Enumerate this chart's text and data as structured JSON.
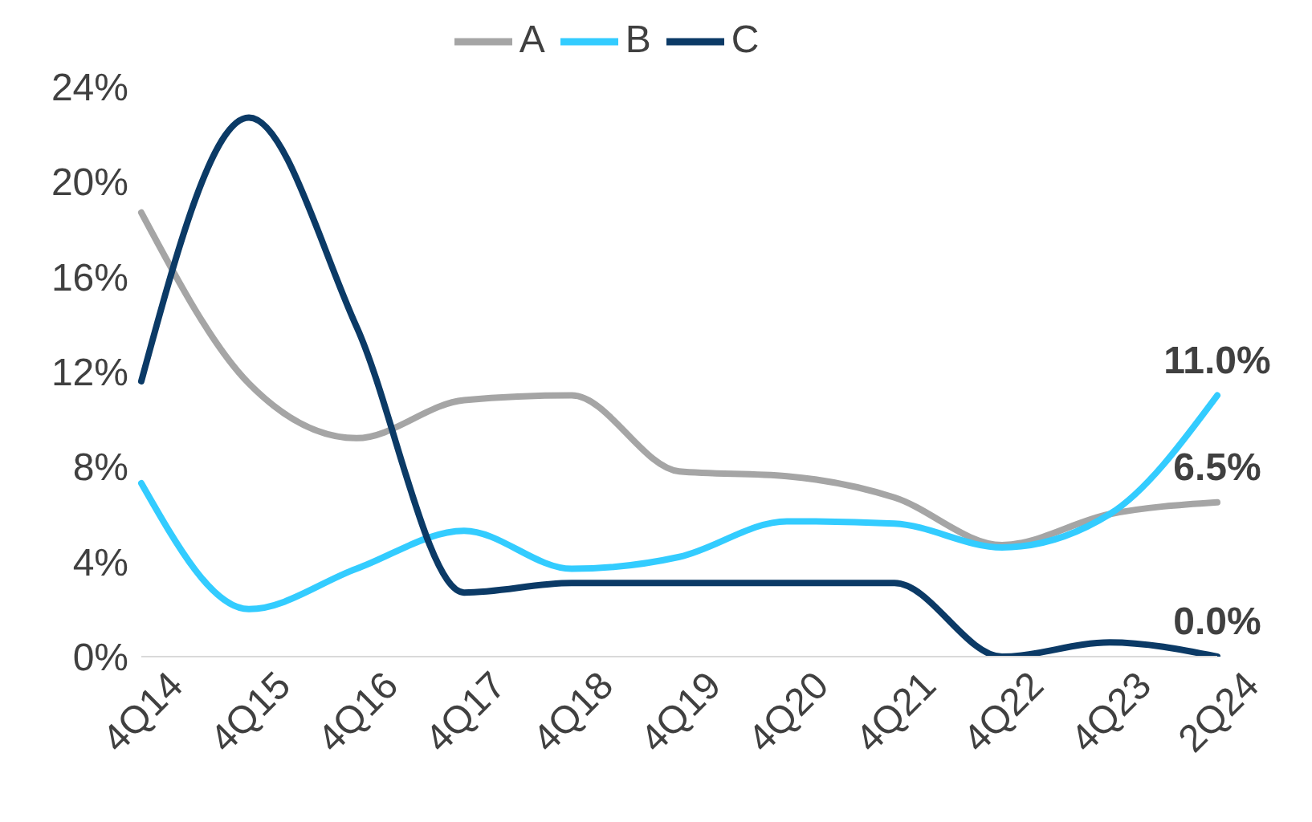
{
  "chart_data": {
    "type": "line",
    "categories": [
      "4Q14",
      "4Q15",
      "4Q16",
      "4Q17",
      "4Q18",
      "4Q19",
      "4Q20",
      "4Q21",
      "4Q22",
      "4Q23",
      "2Q24"
    ],
    "series": [
      {
        "name": "A",
        "color": "#a5a5a5",
        "values": [
          18.7,
          11.5,
          9.2,
          10.8,
          11.0,
          7.8,
          7.6,
          6.7,
          4.7,
          6.0,
          6.5
        ],
        "value_labels": [
          null,
          null,
          null,
          null,
          null,
          null,
          null,
          null,
          null,
          null,
          "6.5%"
        ]
      },
      {
        "name": "B",
        "color": "#33ccff",
        "values": [
          7.3,
          2.0,
          3.7,
          5.3,
          3.7,
          4.2,
          5.7,
          5.6,
          4.6,
          6.0,
          11.0
        ],
        "value_labels": [
          null,
          null,
          null,
          null,
          null,
          null,
          null,
          null,
          null,
          null,
          "11.0%"
        ]
      },
      {
        "name": "C",
        "color": "#0b3a66",
        "values": [
          11.6,
          22.7,
          13.9,
          2.7,
          3.1,
          3.1,
          3.1,
          3.1,
          0.0,
          0.6,
          0.0
        ],
        "value_labels": [
          null,
          null,
          null,
          null,
          null,
          null,
          null,
          null,
          null,
          null,
          "0.0%"
        ]
      }
    ],
    "ylim": [
      0,
      24
    ],
    "yticks": [
      {
        "value": 0,
        "label": "0%"
      },
      {
        "value": 4,
        "label": "4%"
      },
      {
        "value": 8,
        "label": "8%"
      },
      {
        "value": 12,
        "label": "12%"
      },
      {
        "value": 16,
        "label": "16%"
      },
      {
        "value": 20,
        "label": "20%"
      },
      {
        "value": 24,
        "label": "24%"
      }
    ],
    "grid": false,
    "legend": "top",
    "marker": "none",
    "line_style": "solid"
  }
}
